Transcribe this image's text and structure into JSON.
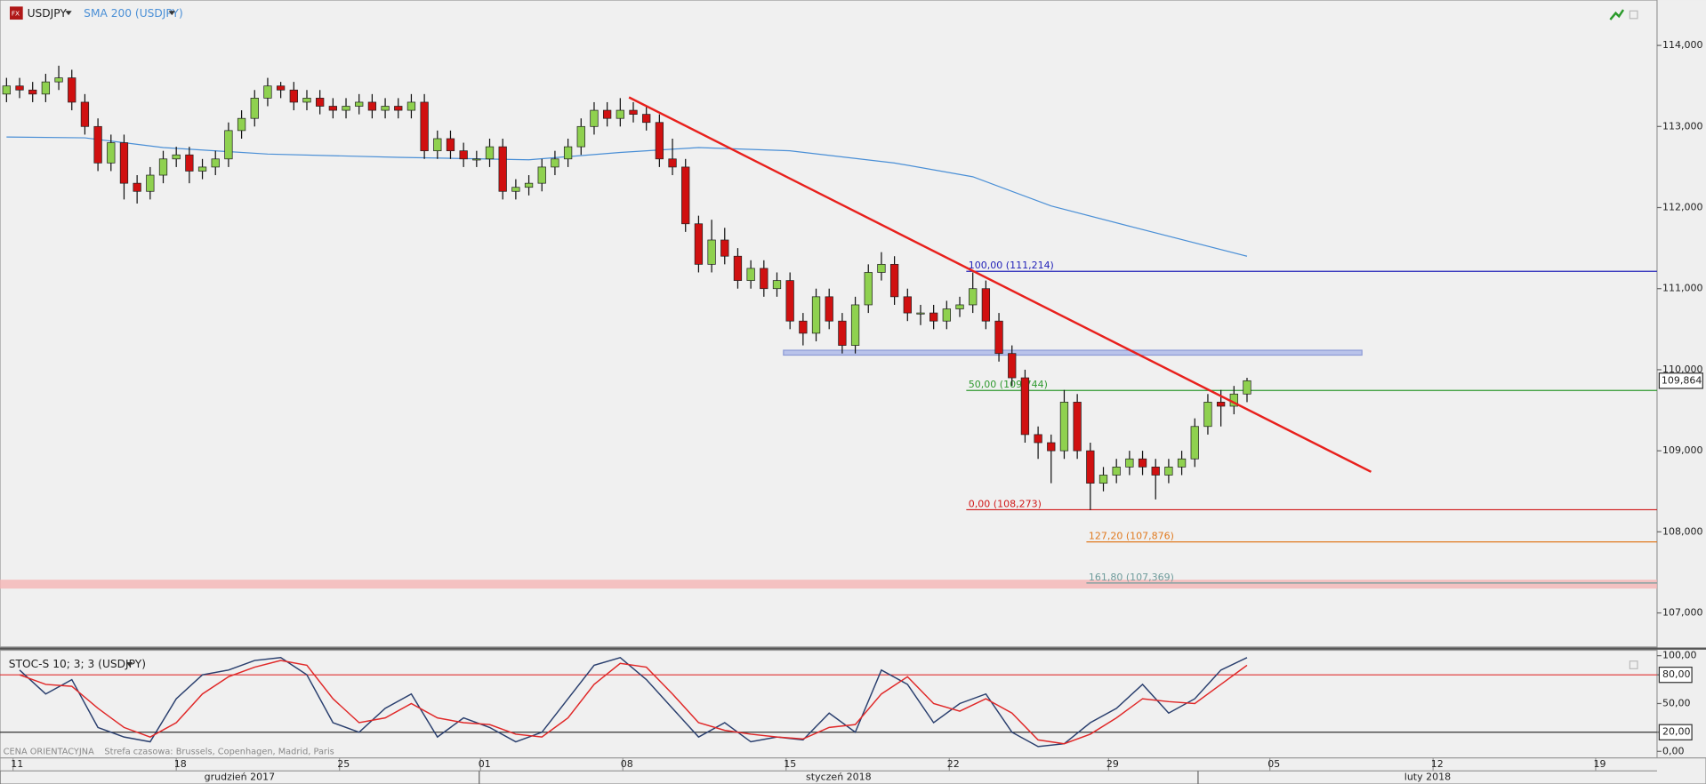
{
  "chart_data": [
    {
      "type": "candlestick",
      "title": "USDJPY",
      "x": [
        0,
        1,
        2,
        3,
        4,
        5,
        6,
        7,
        8,
        9,
        10,
        11,
        12,
        13,
        14,
        15,
        16,
        17,
        18,
        19,
        20,
        21,
        22,
        23,
        24,
        25,
        26,
        27,
        28,
        29,
        30,
        31,
        32,
        33,
        34,
        35,
        36,
        37,
        38,
        39,
        40,
        41,
        42,
        43,
        44,
        45,
        46,
        47,
        48,
        49,
        50,
        51,
        52,
        53,
        54,
        55,
        56,
        57,
        58,
        59,
        60,
        61,
        62,
        63,
        64,
        65,
        66,
        67,
        68,
        69,
        70,
        71,
        72,
        73,
        74,
        75,
        76,
        77,
        78,
        79,
        80,
        81,
        82,
        83,
        84,
        85,
        86,
        87,
        88,
        89,
        90,
        91,
        92,
        93,
        94,
        95
      ],
      "open": [
        113.4,
        113.5,
        113.45,
        113.4,
        113.55,
        113.6,
        113.3,
        113.0,
        112.55,
        112.8,
        112.3,
        112.2,
        112.4,
        112.6,
        112.65,
        112.45,
        112.5,
        112.6,
        112.95,
        113.1,
        113.35,
        113.5,
        113.45,
        113.3,
        113.35,
        113.25,
        113.2,
        113.25,
        113.3,
        113.2,
        113.25,
        113.2,
        113.3,
        112.7,
        112.85,
        112.7,
        112.6,
        112.6,
        112.75,
        112.2,
        112.25,
        112.3,
        112.5,
        112.6,
        112.75,
        113.0,
        113.2,
        113.1,
        113.2,
        113.15,
        113.05,
        112.6,
        112.5,
        111.8,
        111.3,
        111.6,
        111.4,
        111.1,
        111.25,
        111.0,
        111.1,
        110.6,
        110.45,
        110.9,
        110.6,
        110.3,
        110.8,
        111.2,
        111.3,
        110.9,
        110.7,
        110.7,
        110.6,
        110.75,
        110.8,
        111.0,
        110.6,
        110.2,
        109.9,
        109.2,
        109.1,
        109.0,
        109.6,
        109.0,
        108.6,
        108.7,
        108.8,
        108.9,
        108.8,
        108.7,
        108.8,
        108.9,
        109.3,
        109.6,
        109.55,
        109.7
      ],
      "high": [
        113.6,
        113.6,
        113.55,
        113.65,
        113.75,
        113.7,
        113.4,
        113.1,
        112.9,
        112.9,
        112.4,
        112.5,
        112.7,
        112.75,
        112.75,
        112.6,
        112.7,
        113.05,
        113.2,
        113.45,
        113.6,
        113.55,
        113.55,
        113.45,
        113.45,
        113.35,
        113.35,
        113.4,
        113.4,
        113.35,
        113.35,
        113.4,
        113.4,
        112.95,
        112.95,
        112.8,
        112.7,
        112.85,
        112.85,
        112.35,
        112.4,
        112.6,
        112.7,
        112.85,
        113.1,
        113.3,
        113.3,
        113.35,
        113.3,
        113.25,
        113.15,
        112.85,
        112.6,
        111.9,
        111.85,
        111.75,
        111.5,
        111.35,
        111.35,
        111.2,
        111.2,
        110.7,
        111.0,
        111.0,
        110.7,
        110.9,
        111.3,
        111.45,
        111.4,
        111.0,
        110.8,
        110.8,
        110.85,
        110.9,
        111.2,
        111.1,
        110.7,
        110.3,
        110.0,
        109.3,
        109.2,
        109.75,
        109.7,
        109.1,
        108.8,
        108.9,
        109.0,
        109.0,
        108.9,
        108.9,
        109.0,
        109.4,
        109.7,
        109.75,
        109.8,
        109.9
      ],
      "low": [
        113.3,
        113.35,
        113.3,
        113.3,
        113.45,
        113.2,
        112.9,
        112.45,
        112.45,
        112.1,
        112.05,
        112.1,
        112.3,
        112.5,
        112.3,
        112.35,
        112.4,
        112.5,
        112.85,
        113.0,
        113.25,
        113.35,
        113.2,
        113.2,
        113.15,
        113.1,
        113.1,
        113.15,
        113.1,
        113.1,
        113.1,
        113.1,
        112.6,
        112.6,
        112.6,
        112.5,
        112.5,
        112.5,
        112.1,
        112.1,
        112.15,
        112.2,
        112.4,
        112.5,
        112.65,
        112.9,
        113.0,
        113.0,
        113.05,
        112.95,
        112.5,
        112.4,
        111.7,
        111.2,
        111.2,
        111.3,
        111.0,
        111.0,
        110.9,
        110.9,
        110.5,
        110.3,
        110.35,
        110.5,
        110.2,
        110.2,
        110.7,
        111.1,
        110.8,
        110.6,
        110.55,
        110.5,
        110.5,
        110.65,
        110.7,
        110.5,
        110.1,
        109.8,
        109.1,
        108.9,
        108.6,
        108.9,
        108.9,
        108.27,
        108.5,
        108.6,
        108.7,
        108.7,
        108.4,
        108.6,
        108.7,
        108.8,
        109.2,
        109.3,
        109.45,
        109.6
      ],
      "close": [
        113.5,
        113.45,
        113.4,
        113.55,
        113.6,
        113.3,
        113.0,
        112.55,
        112.8,
        112.3,
        112.2,
        112.4,
        112.6,
        112.65,
        112.45,
        112.5,
        112.6,
        112.95,
        113.1,
        113.35,
        113.5,
        113.45,
        113.3,
        113.35,
        113.25,
        113.2,
        113.25,
        113.3,
        113.2,
        113.25,
        113.2,
        113.3,
        112.7,
        112.85,
        112.7,
        112.6,
        112.6,
        112.75,
        112.2,
        112.25,
        112.3,
        112.5,
        112.6,
        112.75,
        113.0,
        113.2,
        113.1,
        113.2,
        113.15,
        113.05,
        112.6,
        112.5,
        111.8,
        111.3,
        111.6,
        111.4,
        111.1,
        111.25,
        111.0,
        111.1,
        110.6,
        110.45,
        110.9,
        110.6,
        110.3,
        110.8,
        111.2,
        111.3,
        110.9,
        110.7,
        110.7,
        110.6,
        110.75,
        110.8,
        111.0,
        110.6,
        110.2,
        109.9,
        109.2,
        109.1,
        109.0,
        109.6,
        109.0,
        108.6,
        108.7,
        108.8,
        108.9,
        108.8,
        108.7,
        108.8,
        108.9,
        109.3,
        109.6,
        109.55,
        109.7,
        109.864
      ],
      "up_color": "#8fd14f",
      "down_color": "#d01010",
      "xlim": [
        -0.5,
        126.4
      ],
      "xticks": [
        {
          "value": 0.5,
          "label": "11"
        },
        {
          "value": 13,
          "label": "18"
        },
        {
          "value": 25.5,
          "label": "25"
        },
        {
          "value": 36.3,
          "label": "01"
        },
        {
          "value": 47.2,
          "label": "08"
        },
        {
          "value": 59.7,
          "label": "15"
        },
        {
          "value": 72.2,
          "label": "22"
        },
        {
          "value": 84.4,
          "label": "29"
        },
        {
          "value": 96.75,
          "label": "05"
        },
        {
          "value": 109.25,
          "label": "12"
        },
        {
          "value": 121.7,
          "label": "19"
        }
      ],
      "months": [
        {
          "label": "grudzień 2017",
          "start": -0.5,
          "end": 36.2
        },
        {
          "label": "styczeń 2018",
          "start": 36.2,
          "end": 91.25
        },
        {
          "label": "luty 2018",
          "start": 91.25,
          "end": 126.4
        }
      ],
      "ylim": [
        106.58,
        114.56
      ],
      "yticks": [
        {
          "value": 107,
          "label": "107,000"
        },
        {
          "value": 108,
          "label": "108,000"
        },
        {
          "value": 109,
          "label": "109,000"
        },
        {
          "value": 110,
          "label": "110,000"
        },
        {
          "value": 111,
          "label": "111,000"
        },
        {
          "value": 112,
          "label": "112,000"
        },
        {
          "value": 113,
          "label": "113,000"
        },
        {
          "value": 114,
          "label": "114,000"
        }
      ],
      "sma": {
        "name": "SMA 200 (USDJPY)",
        "color": "#4a8fd6",
        "x": [
          0,
          6,
          12,
          20,
          30,
          40,
          47,
          53,
          60,
          68,
          74,
          80,
          86,
          95
        ],
        "values": [
          112.87,
          112.86,
          112.74,
          112.66,
          112.62,
          112.59,
          112.68,
          112.74,
          112.7,
          112.55,
          112.38,
          112.02,
          111.77,
          111.4
        ]
      },
      "trendline": {
        "color": "#e8201c",
        "x": [
          47.67,
          104.5
        ],
        "values": [
          113.36,
          108.74
        ]
      },
      "support_band": {
        "color": "#b9c3ea",
        "x": [
          59.5,
          103.8
        ],
        "values": [
          110.18,
          110.24
        ]
      },
      "zone": {
        "color": "#f5b5b5",
        "values": [
          107.3,
          107.41
        ]
      },
      "fib_levels": [
        {
          "label": "100,00 (111,214)",
          "value": 111.214,
          "start": 73.5,
          "color": "#2323b8"
        },
        {
          "label": "50,00 (109,744)",
          "value": 109.744,
          "start": 73.5,
          "color": "#2f9a2f"
        },
        {
          "label": "0,00 (108,273)",
          "value": 108.273,
          "start": 73.5,
          "color": "#d01818"
        },
        {
          "label": "127,20 (107,876)",
          "value": 107.876,
          "start": 82.7,
          "color": "#e07a20"
        },
        {
          "label": "161,80 (107,369)",
          "value": 107.369,
          "start": 82.7,
          "color": "#6f9c9c"
        }
      ],
      "last_price": {
        "value": 109.864,
        "label": "109,864"
      },
      "price_note": "CENA ORIENTACYJNA",
      "timezone_note": "Strefa czasowa: Brussels, Copenhagen, Madrid, Paris"
    },
    {
      "type": "line",
      "title": "STOC-S 10; 3; 3 (USDJPY)",
      "x": [
        1,
        3,
        5,
        7,
        9,
        11,
        13,
        15,
        17,
        19,
        21,
        23,
        25,
        27,
        29,
        31,
        33,
        35,
        37,
        39,
        41,
        43,
        45,
        47,
        49,
        51,
        53,
        55,
        57,
        59,
        61,
        63,
        65,
        67,
        69,
        71,
        73,
        75,
        77,
        79,
        81,
        83,
        85,
        87,
        89,
        91,
        93,
        95
      ],
      "xlim": [
        -0.5,
        126.4
      ],
      "series": [
        {
          "color": "#2a3f6e",
          "values": [
            85,
            60,
            75,
            25,
            15,
            10,
            55,
            80,
            85,
            95,
            98,
            80,
            30,
            20,
            45,
            60,
            15,
            35,
            25,
            10,
            20,
            55,
            90,
            98,
            75,
            45,
            15,
            30,
            10,
            15,
            12,
            40,
            20,
            85,
            70,
            30,
            50,
            60,
            20,
            5,
            8,
            30,
            45,
            70,
            40,
            55,
            85,
            98
          ]
        },
        {
          "color": "#e02828",
          "values": [
            80,
            70,
            68,
            45,
            25,
            15,
            30,
            60,
            78,
            88,
            95,
            90,
            55,
            30,
            35,
            50,
            35,
            30,
            28,
            18,
            15,
            35,
            70,
            92,
            88,
            60,
            30,
            22,
            18,
            15,
            13,
            25,
            28,
            60,
            78,
            50,
            42,
            55,
            40,
            12,
            8,
            18,
            35,
            55,
            52,
            50,
            70,
            90
          ]
        }
      ],
      "ylim": [
        -6.8,
        105.7
      ],
      "yticks": [
        {
          "value": 0,
          "label": "0,00"
        },
        {
          "value": 20,
          "label": "20,00"
        },
        {
          "value": 50,
          "label": "50,00"
        },
        {
          "value": 80,
          "label": "80,00"
        },
        {
          "value": 100,
          "label": "100,00"
        }
      ],
      "levels": [
        {
          "value": 80,
          "color": "#e03030"
        },
        {
          "value": 20,
          "color": "#333333"
        }
      ]
    }
  ]
}
